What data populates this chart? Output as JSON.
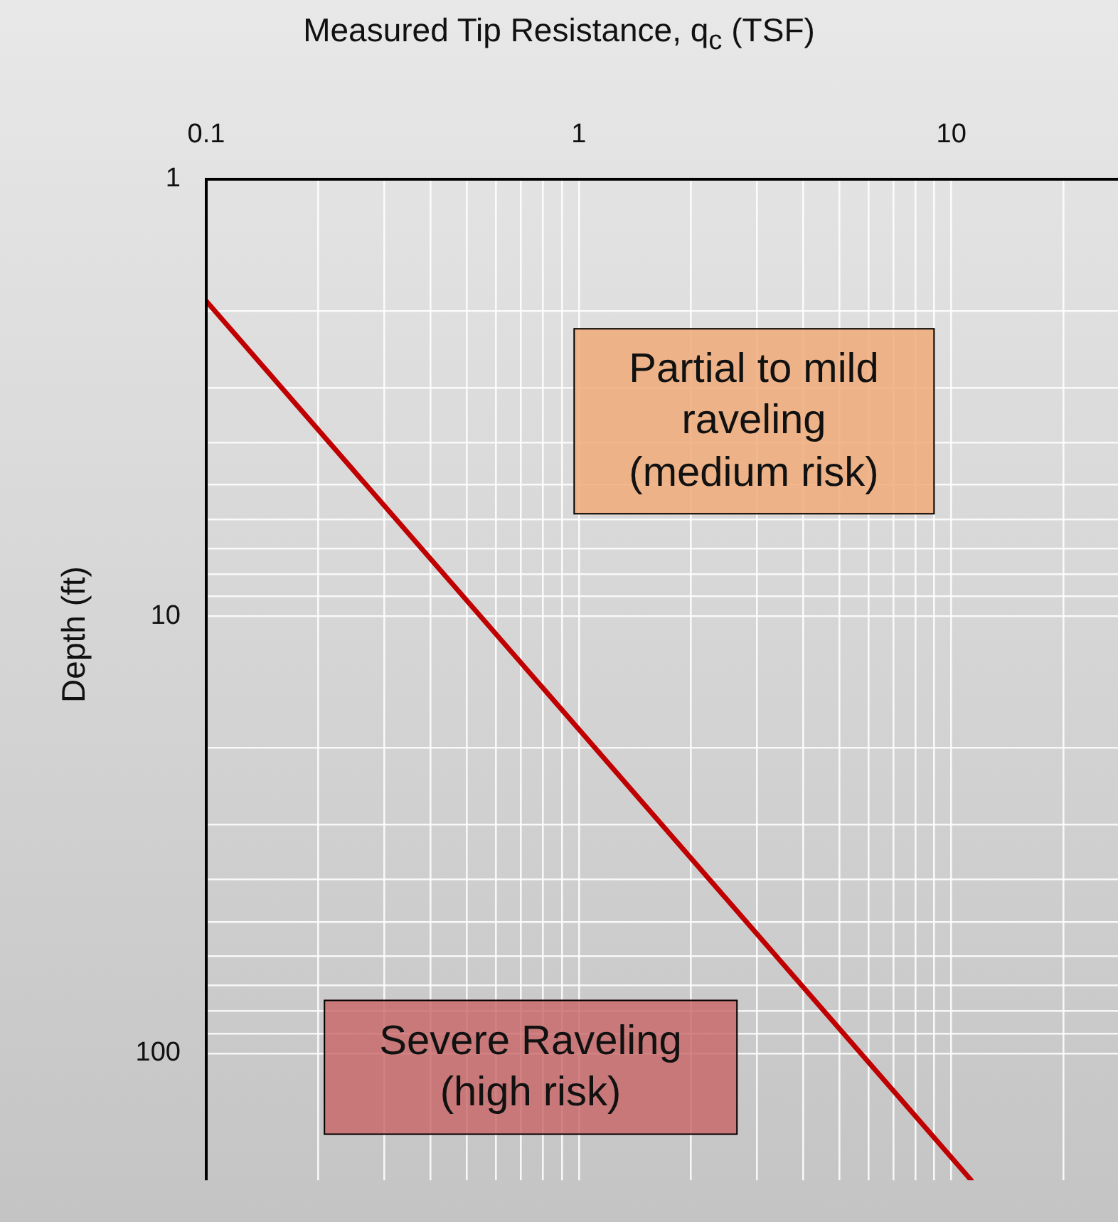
{
  "chart_data": {
    "type": "line",
    "xlabel": "Measured Tip Resistance, q$_{c}$ (TSF)",
    "ylabel": "Depth (ft)",
    "series": [
      {
        "color": "#c00000",
        "x": [
          0.1,
          11.3
        ],
        "values": [
          1.9,
          195
        ]
      }
    ],
    "log": "xy",
    "xlim": [
      0.1,
      28
    ],
    "ylim": [
      195,
      1
    ],
    "xticks": [
      {
        "value": 0.1,
        "label": "0.1"
      },
      {
        "value": 0.2,
        "label": null
      },
      {
        "value": 0.3,
        "label": null
      },
      {
        "value": 0.4,
        "label": null
      },
      {
        "value": 0.5,
        "label": null
      },
      {
        "value": 0.6,
        "label": null
      },
      {
        "value": 0.7,
        "label": null
      },
      {
        "value": 0.8,
        "label": null
      },
      {
        "value": 0.9,
        "label": null
      },
      {
        "value": 1,
        "label": "1"
      },
      {
        "value": 2,
        "label": null
      },
      {
        "value": 3,
        "label": null
      },
      {
        "value": 4,
        "label": null
      },
      {
        "value": 5,
        "label": null
      },
      {
        "value": 6,
        "label": null
      },
      {
        "value": 7,
        "label": null
      },
      {
        "value": 8,
        "label": null
      },
      {
        "value": 9,
        "label": null
      },
      {
        "value": 10,
        "label": "10"
      },
      {
        "value": 20,
        "label": null
      }
    ],
    "yticks": [
      {
        "value": 1,
        "label": "1"
      },
      {
        "value": 2,
        "label": null
      },
      {
        "value": 3,
        "label": null
      },
      {
        "value": 4,
        "label": null
      },
      {
        "value": 5,
        "label": null
      },
      {
        "value": 6,
        "label": null
      },
      {
        "value": 7,
        "label": null
      },
      {
        "value": 8,
        "label": null
      },
      {
        "value": 9,
        "label": null
      },
      {
        "value": 10,
        "label": "10"
      },
      {
        "value": 20,
        "label": null
      },
      {
        "value": 30,
        "label": null
      },
      {
        "value": 40,
        "label": null
      },
      {
        "value": 50,
        "label": null
      },
      {
        "value": 60,
        "label": null
      },
      {
        "value": 70,
        "label": null
      },
      {
        "value": 80,
        "label": null
      },
      {
        "value": 90,
        "label": null
      },
      {
        "value": 100,
        "label": "100"
      }
    ],
    "grid": true,
    "marker": "none",
    "line_style": "solid",
    "annotations": [
      "Partial to mild\nraveling\n(medium risk)",
      "Severe Raveling\n(high risk)"
    ]
  }
}
